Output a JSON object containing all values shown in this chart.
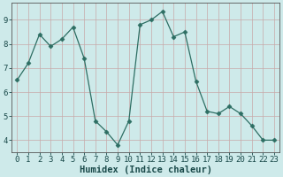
{
  "x": [
    0,
    1,
    2,
    3,
    4,
    5,
    6,
    7,
    8,
    9,
    10,
    11,
    12,
    13,
    14,
    15,
    16,
    17,
    18,
    19,
    20,
    21,
    22,
    23
  ],
  "y": [
    6.5,
    7.2,
    8.4,
    7.9,
    8.2,
    8.7,
    7.4,
    4.8,
    4.35,
    3.8,
    4.8,
    8.8,
    9.0,
    9.35,
    8.3,
    8.5,
    6.45,
    5.2,
    5.1,
    5.4,
    5.1,
    4.6,
    4.0,
    4.0
  ],
  "line_color": "#2d6e63",
  "marker": "D",
  "marker_size": 2.5,
  "bg_color": "#ceeaea",
  "grid_major_color": "#b8d4d4",
  "grid_minor_color": "#d8ecec",
  "xlabel": "Humidex (Indice chaleur)",
  "ylim": [
    3.5,
    9.7
  ],
  "yticks": [
    4,
    5,
    6,
    7,
    8,
    9
  ],
  "xticks": [
    0,
    1,
    2,
    3,
    4,
    5,
    6,
    7,
    8,
    9,
    10,
    11,
    12,
    13,
    14,
    15,
    16,
    17,
    18,
    19,
    20,
    21,
    22,
    23
  ],
  "tick_fontsize": 6.5,
  "xlabel_fontsize": 7.5,
  "tick_color": "#1a4a4a",
  "axis_color": "#555555",
  "lw": 0.9
}
